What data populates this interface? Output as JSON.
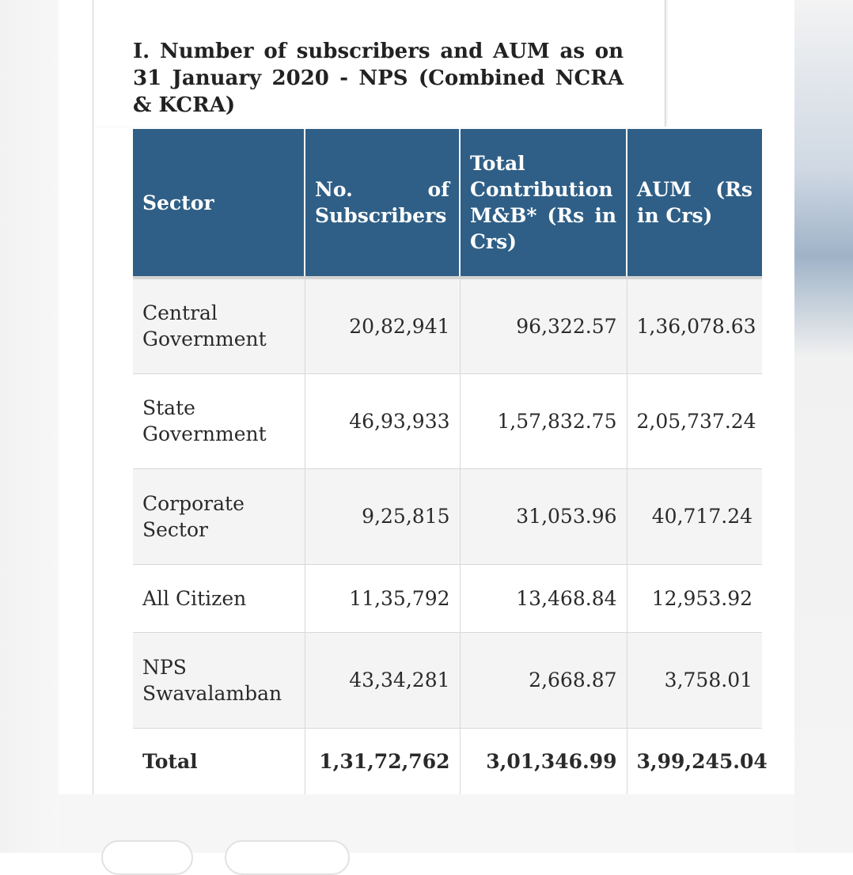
{
  "heading": "I. Number of subscribers and AUM as on 31 January 2020 - NPS (Combined NCRA & KCRA)",
  "table": {
    "headers": [
      "Sector",
      "No. of Subscribers",
      "Total Contribution M&B* (Rs in Crs)",
      "AUM (Rs in Crs)"
    ],
    "rows": [
      [
        "Central Government",
        "20,82,941",
        "96,322.57",
        "1,36,078.63"
      ],
      [
        "State Government",
        "46,93,933",
        "1,57,832.75",
        "2,05,737.24"
      ],
      [
        "Corporate Sector",
        "9,25,815",
        "31,053.96",
        "40,717.24"
      ],
      [
        "All Citizen",
        "11,35,792",
        "13,468.84",
        "12,953.92"
      ],
      [
        "NPS Swavalamban",
        "43,34,281",
        "2,668.87",
        "3,758.01"
      ]
    ],
    "total": [
      "Total",
      "1,31,72,762",
      "3,01,346.99",
      "3,99,245.04"
    ]
  }
}
